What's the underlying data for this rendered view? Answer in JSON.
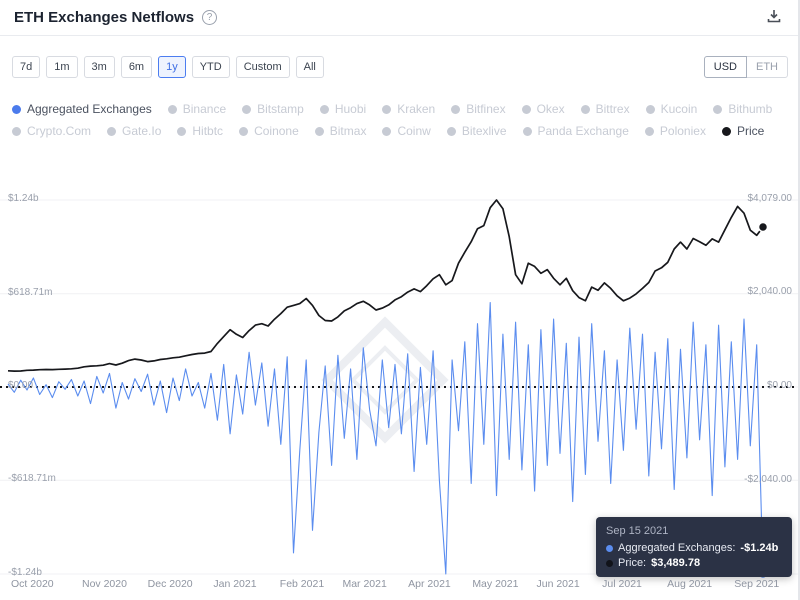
{
  "header": {
    "title": "ETH Exchanges Netflows",
    "help_icon": "?",
    "download_icon": "download"
  },
  "controls": {
    "ranges": [
      {
        "label": "7d",
        "active": false
      },
      {
        "label": "1m",
        "active": false
      },
      {
        "label": "3m",
        "active": false
      },
      {
        "label": "6m",
        "active": false
      },
      {
        "label": "1y",
        "active": true
      },
      {
        "label": "YTD",
        "active": false
      },
      {
        "label": "Custom",
        "active": false
      },
      {
        "label": "All",
        "active": false
      }
    ],
    "currency": [
      {
        "label": "USD",
        "active": true
      },
      {
        "label": "ETH",
        "active": false
      }
    ]
  },
  "legend": {
    "items": [
      {
        "label": "Aggregated Exchanges",
        "color": "#4b7bec",
        "active": true
      },
      {
        "label": "Binance",
        "color": "#c7cbd4",
        "active": false
      },
      {
        "label": "Bitstamp",
        "color": "#c7cbd4",
        "active": false
      },
      {
        "label": "Huobi",
        "color": "#c7cbd4",
        "active": false
      },
      {
        "label": "Kraken",
        "color": "#c7cbd4",
        "active": false
      },
      {
        "label": "Bitfinex",
        "color": "#c7cbd4",
        "active": false
      },
      {
        "label": "Okex",
        "color": "#c7cbd4",
        "active": false
      },
      {
        "label": "Bittrex",
        "color": "#c7cbd4",
        "active": false
      },
      {
        "label": "Kucoin",
        "color": "#c7cbd4",
        "active": false
      },
      {
        "label": "Bithumb",
        "color": "#c7cbd4",
        "active": false
      },
      {
        "label": "Crypto.Com",
        "color": "#c7cbd4",
        "active": false
      },
      {
        "label": "Gate.Io",
        "color": "#c7cbd4",
        "active": false
      },
      {
        "label": "Hitbtc",
        "color": "#c7cbd4",
        "active": false
      },
      {
        "label": "Coinone",
        "color": "#c7cbd4",
        "active": false
      },
      {
        "label": "Bitmax",
        "color": "#c7cbd4",
        "active": false
      },
      {
        "label": "Coinw",
        "color": "#c7cbd4",
        "active": false
      },
      {
        "label": "Bitexlive",
        "color": "#c7cbd4",
        "active": false
      },
      {
        "label": "Panda Exchange",
        "color": "#c7cbd4",
        "active": false
      },
      {
        "label": "Poloniex",
        "color": "#c7cbd4",
        "active": false
      },
      {
        "label": "Price",
        "color": "#17181c",
        "active": true
      }
    ]
  },
  "chart_data": {
    "type": "line",
    "title": "ETH Exchanges Netflows",
    "x_range": [
      "Oct 1 2020",
      "Sep 15 2021"
    ],
    "x_tick_labels": [
      {
        "label": "Oct 2020",
        "f": 0.004
      },
      {
        "label": "Nov 2020",
        "f": 0.098
      },
      {
        "label": "Dec 2020",
        "f": 0.185
      },
      {
        "label": "Jan 2021",
        "f": 0.272
      },
      {
        "label": "Feb 2021",
        "f": 0.36
      },
      {
        "label": "Mar 2021",
        "f": 0.443
      },
      {
        "label": "Apr 2021",
        "f": 0.53
      },
      {
        "label": "May 2021",
        "f": 0.615
      },
      {
        "label": "Jun 2021",
        "f": 0.7
      },
      {
        "label": "Jul 2021",
        "f": 0.787
      },
      {
        "label": "Aug 2021",
        "f": 0.873
      },
      {
        "label": "Sep 2021",
        "f": 0.962
      }
    ],
    "left_axis": {
      "unit": "netflow USD (millions)",
      "range_m": [
        -1240,
        1240
      ],
      "ticks": [
        {
          "label": "$1.24b",
          "value_m": 1240
        },
        {
          "label": "$618.71m",
          "value_m": 618.71
        },
        {
          "label": "$0.00",
          "value_m": 0
        },
        {
          "label": "-$618.71m",
          "value_m": -618.71
        },
        {
          "label": "-$1.24b",
          "value_m": -1240
        }
      ]
    },
    "right_axis": {
      "unit": "price USD",
      "range": [
        -4079,
        4079
      ],
      "ticks": [
        {
          "label": "$4,079.00",
          "value": 4079
        },
        {
          "label": "$2,040.00",
          "value": 2040
        },
        {
          "label": "$0.00",
          "value": 0
        },
        {
          "label": "-$2,040.00",
          "value": -2040
        }
      ]
    },
    "zero_line": true,
    "series": [
      {
        "name": "Aggregated Exchanges",
        "axis": "left",
        "color": "#5b8def",
        "unit": "million USD",
        "values": [
          20,
          -35,
          45,
          -20,
          60,
          -50,
          15,
          -70,
          35,
          -15,
          50,
          -60,
          40,
          -110,
          70,
          -40,
          90,
          -140,
          30,
          -80,
          55,
          -30,
          85,
          -120,
          40,
          -170,
          60,
          -90,
          120,
          -60,
          30,
          -140,
          90,
          -220,
          150,
          -310,
          80,
          -180,
          230,
          -120,
          160,
          -260,
          120,
          -380,
          200,
          -1100,
          -420,
          180,
          -950,
          -300,
          140,
          -520,
          210,
          -340,
          120,
          -480,
          260,
          -150,
          -390,
          180,
          -270,
          150,
          -310,
          220,
          -560,
          130,
          -380,
          240,
          -620,
          -1240,
          180,
          -290,
          300,
          -640,
          420,
          -380,
          560,
          -720,
          350,
          -480,
          430,
          -550,
          280,
          -690,
          380,
          -520,
          450,
          -440,
          290,
          -760,
          330,
          -580,
          420,
          -360,
          240,
          -640,
          180,
          -420,
          390,
          -280,
          350,
          -590,
          230,
          -410,
          320,
          -680,
          250,
          -470,
          430,
          -350,
          280,
          -720,
          410,
          -530,
          300,
          -480,
          450,
          -390,
          280,
          -1240
        ]
      },
      {
        "name": "Price",
        "axis": "right",
        "color": "#17181c",
        "unit": "USD",
        "values": [
          354,
          346,
          350,
          365,
          368,
          377,
          382,
          379,
          386,
          390,
          398,
          410,
          440,
          455,
          462,
          475,
          510,
          480,
          520,
          575,
          608,
          590,
          555,
          570,
          600,
          615,
          637,
          650,
          680,
          710,
          730,
          740,
          775,
          950,
          1100,
          1250,
          1150,
          1080,
          1230,
          1350,
          1380,
          1330,
          1480,
          1600,
          1740,
          1780,
          1820,
          1930,
          1780,
          1560,
          1450,
          1440,
          1530,
          1660,
          1730,
          1820,
          1870,
          1790,
          1680,
          1720,
          1790,
          1900,
          1970,
          2070,
          2140,
          2080,
          2210,
          2360,
          2450,
          2230,
          2320,
          2700,
          2940,
          3170,
          3450,
          3520,
          3910,
          4079,
          3890,
          3280,
          2450,
          2250,
          2700,
          2630,
          2480,
          2560,
          2370,
          2230,
          2370,
          2100,
          1950,
          1880,
          2180,
          2110,
          2270,
          2150,
          1990,
          1880,
          1940,
          2030,
          2150,
          2280,
          2530,
          2600,
          2720,
          3010,
          3160,
          3010,
          3240,
          3170,
          3090,
          3230,
          3160,
          3430,
          3700,
          3940,
          3790,
          3420,
          3310,
          3489.78
        ]
      }
    ]
  },
  "tooltip": {
    "date": "Sep 15 2021",
    "rows": [
      {
        "label": "Aggregated Exchanges:",
        "value": "-$1.24b",
        "dot_color": "#5b8def"
      },
      {
        "label": "Price:",
        "value": "$3,489.78",
        "dot_color": "#11131a"
      }
    ]
  }
}
